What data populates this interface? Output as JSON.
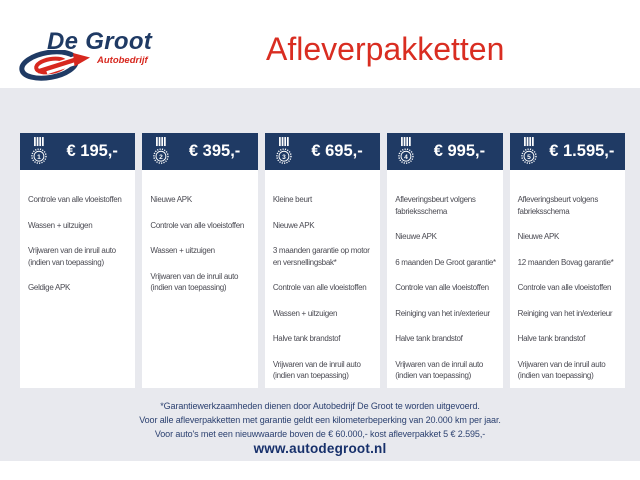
{
  "brand": {
    "name": "De Groot",
    "tagline": "Autobedrijf"
  },
  "page_title": "Afleverpakketten",
  "packages": [
    {
      "number": "1",
      "price": "€ 195,-",
      "items": [
        "Controle van alle vloeistoffen",
        "Wassen + uitzuigen",
        "Vrijwaren van de inruil auto (indien van toepassing)",
        "Geldige APK"
      ]
    },
    {
      "number": "2",
      "price": "€ 395,-",
      "items": [
        "Nieuwe APK",
        "Controle van alle vloeistoffen",
        "Wassen + uitzuigen",
        "Vrijwaren van de inruil auto (indien van toepassing)"
      ]
    },
    {
      "number": "3",
      "price": "€ 695,-",
      "items": [
        "Kleine beurt",
        "Nieuwe APK",
        "3 maanden garantie op motor en versnellingsbak*",
        "Controle van alle vloeistoffen",
        "Wassen + uitzuigen",
        "Halve tank brandstof",
        "Vrijwaren van de inruil auto (indien van toepassing)"
      ]
    },
    {
      "number": "4",
      "price": "€ 995,-",
      "items": [
        "Afleveringsbeurt volgens fabrieksschema",
        "Nieuwe APK",
        "6 maanden De Groot garantie*",
        "Controle van alle vloeistoffen",
        "Reiniging van het in/exterieur",
        "Halve tank brandstof",
        "Vrijwaren van de inruil auto (indien van toepassing)"
      ]
    },
    {
      "number": "5",
      "price": "€ 1.595,-",
      "items": [
        "Afleveringsbeurt volgens fabrieksschema",
        "Nieuwe APK",
        "12 maanden Bovag garantie*",
        "Controle van alle vloeistoffen",
        "Reiniging van het in/exterieur",
        "Halve tank brandstof",
        "Vrijwaren van de inruil auto (indien van toepassing)"
      ]
    }
  ],
  "footnotes": [
    "*Garantiewerkzaamheden dienen door Autobedrijf De Groot te worden uitgevoerd.",
    "Voor alle afleverpakketten met garantie geldt een kilometerbeperking van 20.000 km per jaar.",
    "Voor auto's met een nieuwwaarde boven de € 60.000,- kost afleverpakket 5 € 2.595,-"
  ],
  "website": "www.autodegroot.nl",
  "colors": {
    "navy": "#1f3a64",
    "red": "#d7281f",
    "background_gray": "#e8e9ee",
    "body_text": "#4b4b53",
    "footnote_text": "#2c4170"
  }
}
